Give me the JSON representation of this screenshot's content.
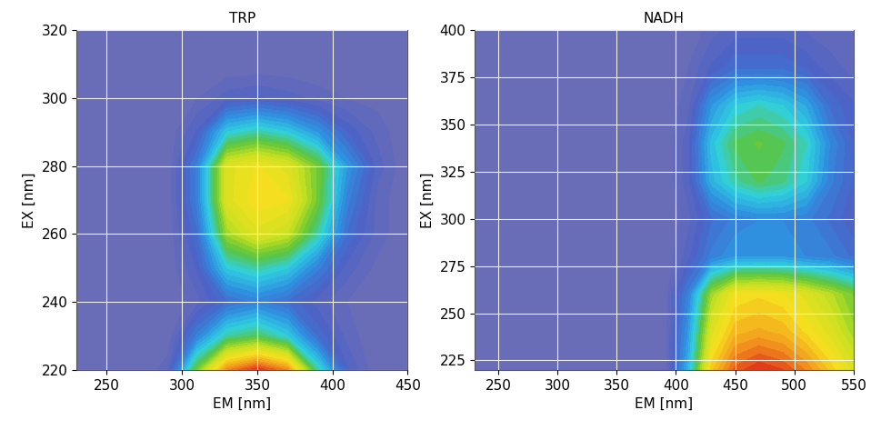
{
  "chart_data": [
    {
      "type": "heatmap",
      "title": "TRP",
      "x_label": "EM [nm]",
      "y_label": "EX [nm]",
      "xlim": [
        230,
        450
      ],
      "ylim": [
        220,
        320
      ],
      "xticks": [
        250,
        300,
        350,
        400,
        450
      ],
      "yticks": [
        220,
        240,
        260,
        280,
        300,
        320
      ],
      "grid": true,
      "x": [
        230,
        250,
        270,
        290,
        310,
        330,
        350,
        370,
        390,
        410,
        430,
        450
      ],
      "y": [
        220,
        230,
        240,
        250,
        260,
        270,
        280,
        290,
        300,
        310,
        320
      ],
      "cells": [
        [
          0,
          0,
          0,
          5,
          50,
          85,
          95,
          85,
          40,
          10,
          0,
          0
        ],
        [
          0,
          0,
          0,
          0,
          20,
          40,
          45,
          35,
          15,
          5,
          0,
          0
        ],
        [
          0,
          0,
          0,
          0,
          5,
          15,
          20,
          15,
          8,
          3,
          0,
          0
        ],
        [
          0,
          0,
          0,
          0,
          10,
          35,
          40,
          35,
          20,
          8,
          2,
          0
        ],
        [
          0,
          0,
          0,
          0,
          15,
          55,
          65,
          60,
          40,
          15,
          5,
          0
        ],
        [
          0,
          0,
          0,
          0,
          20,
          65,
          72,
          70,
          50,
          20,
          5,
          0
        ],
        [
          0,
          0,
          0,
          0,
          20,
          65,
          70,
          65,
          50,
          25,
          8,
          0
        ],
        [
          0,
          0,
          0,
          0,
          10,
          35,
          40,
          35,
          25,
          12,
          5,
          0
        ],
        [
          0,
          0,
          0,
          0,
          3,
          8,
          10,
          8,
          5,
          3,
          2,
          0
        ],
        [
          0,
          0,
          0,
          0,
          0,
          0,
          0,
          0,
          0,
          0,
          0,
          0
        ],
        [
          0,
          0,
          0,
          0,
          0,
          0,
          0,
          0,
          0,
          0,
          0,
          0
        ]
      ]
    },
    {
      "type": "heatmap",
      "title": "NADH",
      "x_label": "EM [nm]",
      "y_label": "EX [nm]",
      "xlim": [
        230,
        550
      ],
      "ylim": [
        220,
        400
      ],
      "xticks": [
        250,
        300,
        350,
        400,
        450,
        500,
        550
      ],
      "yticks": [
        225,
        250,
        275,
        300,
        325,
        350,
        375,
        400
      ],
      "grid": true,
      "x": [
        230,
        250,
        270,
        290,
        310,
        330,
        350,
        370,
        390,
        410,
        430,
        450,
        470,
        490,
        510,
        530,
        550
      ],
      "y": [
        220,
        240,
        260,
        280,
        300,
        320,
        340,
        360,
        380,
        400
      ],
      "cells": [
        [
          0,
          0,
          0,
          0,
          0,
          0,
          0,
          0,
          0,
          30,
          75,
          90,
          95,
          92,
          85,
          75,
          65
        ],
        [
          0,
          0,
          0,
          0,
          0,
          0,
          0,
          0,
          0,
          25,
          65,
          78,
          80,
          78,
          72,
          65,
          55
        ],
        [
          0,
          0,
          0,
          0,
          0,
          0,
          0,
          0,
          0,
          20,
          55,
          70,
          72,
          70,
          65,
          58,
          50
        ],
        [
          0,
          0,
          0,
          0,
          0,
          0,
          0,
          0,
          0,
          8,
          20,
          25,
          25,
          25,
          22,
          20,
          15
        ],
        [
          0,
          0,
          0,
          0,
          0,
          0,
          0,
          0,
          0,
          5,
          15,
          20,
          22,
          22,
          20,
          15,
          10
        ],
        [
          0,
          0,
          0,
          0,
          0,
          0,
          0,
          0,
          0,
          8,
          30,
          40,
          45,
          42,
          35,
          20,
          12
        ],
        [
          0,
          0,
          0,
          0,
          0,
          0,
          0,
          0,
          0,
          8,
          33,
          45,
          48,
          45,
          38,
          22,
          12
        ],
        [
          0,
          0,
          0,
          0,
          0,
          0,
          0,
          0,
          0,
          5,
          25,
          35,
          38,
          35,
          28,
          15,
          10
        ],
        [
          0,
          0,
          0,
          0,
          0,
          0,
          0,
          0,
          0,
          3,
          10,
          15,
          15,
          15,
          12,
          8,
          5
        ],
        [
          0,
          0,
          0,
          0,
          0,
          0,
          0,
          0,
          0,
          0,
          5,
          8,
          8,
          8,
          6,
          4,
          3
        ]
      ]
    }
  ]
}
